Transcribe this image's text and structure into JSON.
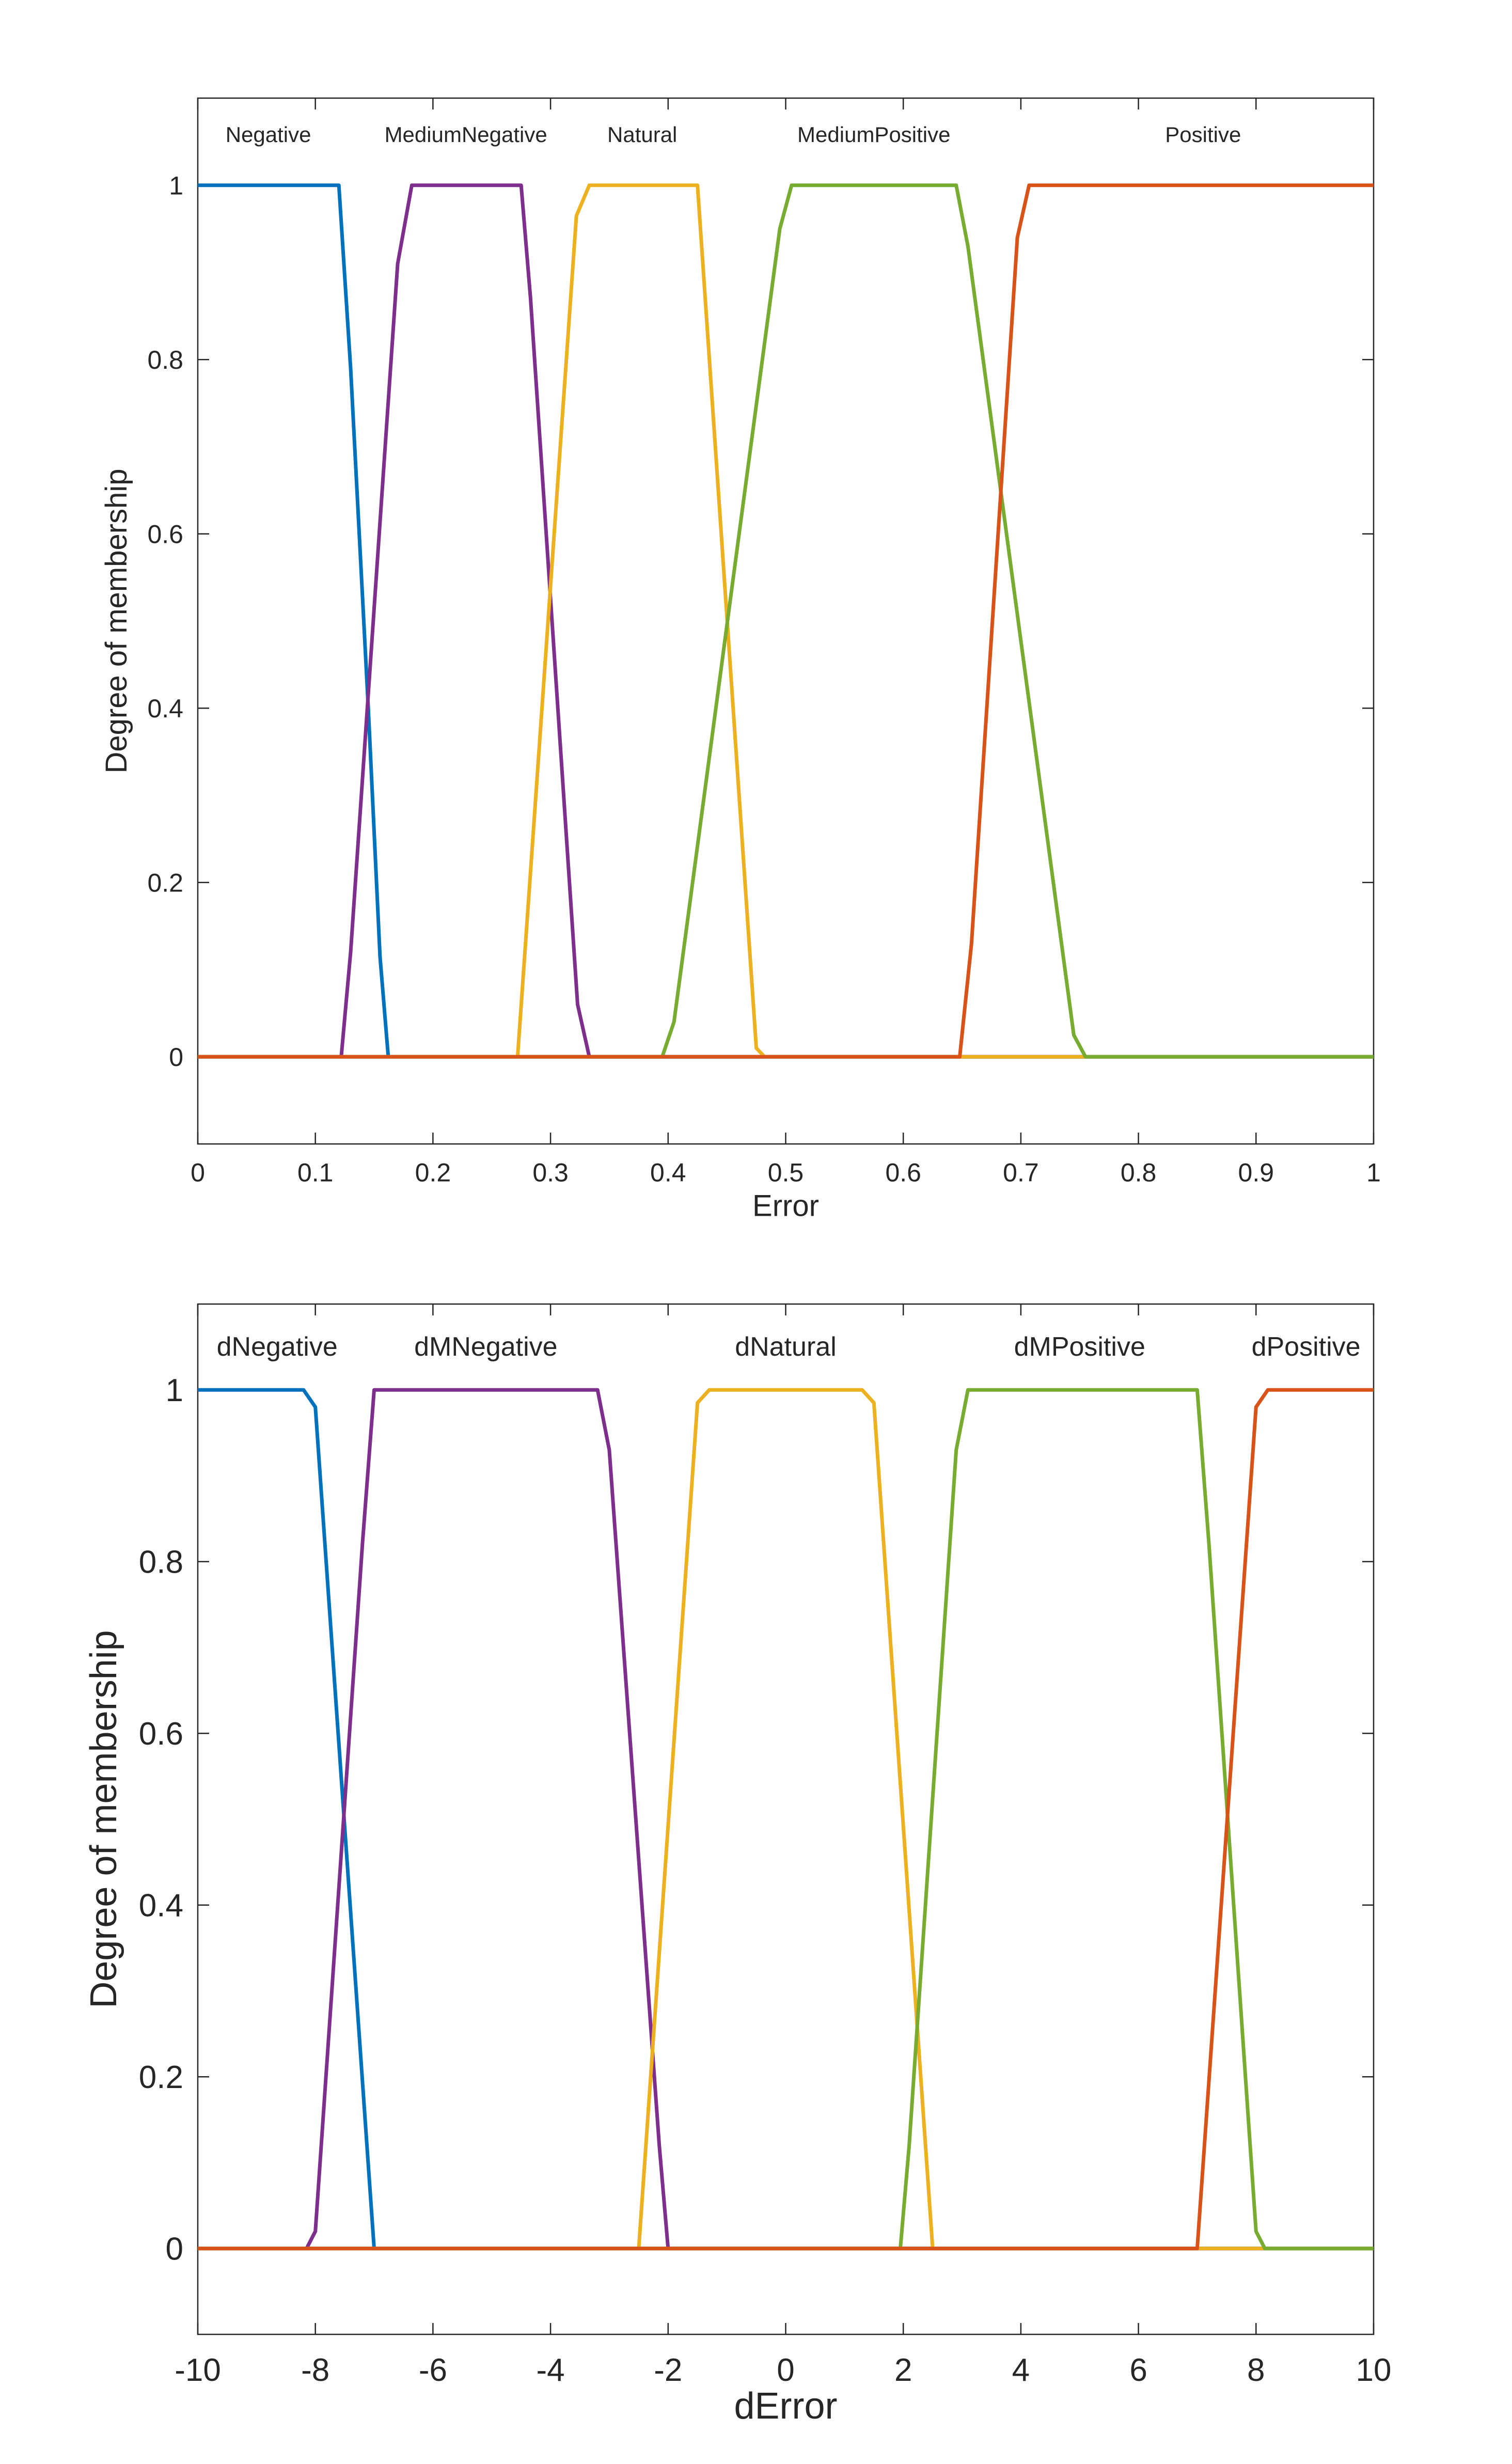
{
  "chart_data": [
    {
      "type": "line",
      "xlabel": "Error",
      "ylabel": "Degree of membership",
      "xlim": [
        0,
        1
      ],
      "ylim": [
        -0.1,
        1.1
      ],
      "xticks": [
        0,
        0.1,
        0.2,
        0.3,
        0.4,
        0.5,
        0.6,
        0.7,
        0.8,
        0.9,
        1
      ],
      "xtick_labels": [
        "0",
        "0.1",
        "0.2",
        "0.3",
        "0.4",
        "0.5",
        "0.6",
        "0.7",
        "0.8",
        "0.9",
        "1"
      ],
      "yticks": [
        0,
        0.2,
        0.4,
        0.6,
        0.8,
        1
      ],
      "ytick_labels": [
        "0",
        "0.2",
        "0.4",
        "0.6",
        "0.8",
        "1"
      ],
      "grid": false,
      "series": [
        {
          "name": "Negative",
          "color": "#0072BD",
          "label_x": 0.06,
          "x": [
            0,
            0.12,
            0.13,
            0.145,
            0.155,
            0.162,
            1
          ],
          "y": [
            1,
            1,
            0.79,
            0.4,
            0.115,
            0,
            0
          ]
        },
        {
          "name": "MediumNegative",
          "color": "#7E2F8E",
          "label_x": 0.228,
          "x": [
            0,
            0.122,
            0.13,
            0.17,
            0.182,
            0.275,
            0.283,
            0.323,
            0.333,
            1
          ],
          "y": [
            0,
            0,
            0.12,
            0.91,
            1,
            1,
            0.87,
            0.06,
            0,
            0
          ]
        },
        {
          "name": "Natural",
          "color": "#EDB120",
          "label_x": 0.378,
          "x": [
            0,
            0.272,
            0.322,
            0.333,
            0.425,
            0.475,
            0.482,
            1
          ],
          "y": [
            0,
            0,
            0.965,
            1,
            1,
            0.01,
            0,
            0
          ]
        },
        {
          "name": "MediumPositive",
          "color": "#77AC30",
          "label_x": 0.575,
          "x": [
            0,
            0.395,
            0.405,
            0.495,
            0.505,
            0.645,
            0.655,
            0.745,
            0.755,
            1
          ],
          "y": [
            0,
            0,
            0.04,
            0.95,
            1,
            1,
            0.93,
            0.025,
            0,
            0
          ]
        },
        {
          "name": "Positive",
          "color": "#D95319",
          "label_x": 0.855,
          "x": [
            0,
            0.648,
            0.658,
            0.697,
            0.707,
            1
          ],
          "y": [
            0,
            0,
            0.13,
            0.94,
            1,
            1
          ]
        }
      ]
    },
    {
      "type": "line",
      "xlabel": "dError",
      "ylabel": "Degree of membership",
      "xlim": [
        -10,
        10
      ],
      "ylim": [
        -0.1,
        1.1
      ],
      "xticks": [
        -10,
        -8,
        -6,
        -4,
        -2,
        0,
        2,
        4,
        6,
        8,
        10
      ],
      "xtick_labels": [
        "-10",
        "-8",
        "-6",
        "-4",
        "-2",
        "0",
        "2",
        "4",
        "6",
        "8",
        "10"
      ],
      "yticks": [
        0,
        0.2,
        0.4,
        0.6,
        0.8,
        1
      ],
      "ytick_labels": [
        "0",
        "0.2",
        "0.4",
        "0.6",
        "0.8",
        "1"
      ],
      "grid": false,
      "series": [
        {
          "name": "dNegative",
          "color": "#0072BD",
          "label_x": -8.65,
          "x": [
            -10,
            -8.2,
            -8.0,
            -7.0,
            10
          ],
          "y": [
            1,
            1,
            0.98,
            0,
            0
          ]
        },
        {
          "name": "dMNegative",
          "color": "#7E2F8E",
          "label_x": -5.1,
          "x": [
            -10,
            -8.15,
            -8.0,
            -7.2,
            -7.0,
            -3.2,
            -3.0,
            -2.15,
            -2.0,
            10
          ],
          "y": [
            0,
            0,
            0.02,
            0.82,
            1,
            1,
            0.93,
            0.12,
            0,
            0
          ]
        },
        {
          "name": "dNatural",
          "color": "#EDB120",
          "label_x": 0.0,
          "x": [
            -10,
            -2.5,
            -1.5,
            -1.3,
            1.3,
            1.5,
            2.5,
            10
          ],
          "y": [
            0,
            0,
            0.985,
            1,
            1,
            0.985,
            0,
            0
          ]
        },
        {
          "name": "dMPositive",
          "color": "#77AC30",
          "label_x": 5.0,
          "x": [
            -10,
            1.95,
            2.1,
            2.9,
            3.1,
            7.0,
            7.2,
            8.0,
            8.15,
            10
          ],
          "y": [
            0,
            0,
            0.12,
            0.93,
            1,
            1,
            0.82,
            0.02,
            0,
            0
          ]
        },
        {
          "name": "dPositive",
          "color": "#D95319",
          "label_x": 8.85,
          "x": [
            -10,
            7.0,
            8.0,
            8.2,
            10
          ],
          "y": [
            0,
            0,
            0.98,
            1,
            1
          ]
        }
      ]
    }
  ]
}
